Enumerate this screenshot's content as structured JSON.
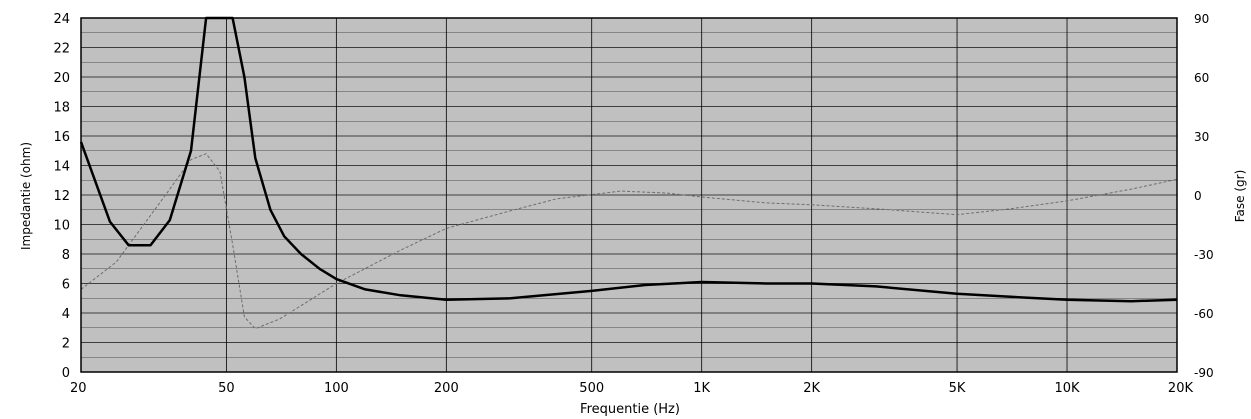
{
  "chart_data": {
    "type": "line",
    "xlabel": "Frequentie (Hz)",
    "ylabel": "Impedantie (ohm)",
    "y2label": "Fase (gr)",
    "x_scale": "log",
    "xlim": [
      20,
      20000
    ],
    "ylim": [
      0,
      24
    ],
    "y2lim": [
      -90,
      90
    ],
    "x_ticks": [
      {
        "value": 20,
        "label": "20"
      },
      {
        "value": 50,
        "label": "50"
      },
      {
        "value": 100,
        "label": "100"
      },
      {
        "value": 200,
        "label": "200"
      },
      {
        "value": 500,
        "label": "500"
      },
      {
        "value": 1000,
        "label": "1K"
      },
      {
        "value": 2000,
        "label": "2K"
      },
      {
        "value": 5000,
        "label": "5K"
      },
      {
        "value": 10000,
        "label": "10K"
      },
      {
        "value": 20000,
        "label": "20K"
      }
    ],
    "y_ticks": [
      "0",
      "2",
      "4",
      "6",
      "8",
      "10",
      "12",
      "14",
      "16",
      "18",
      "20",
      "22",
      "24"
    ],
    "y2_ticks": [
      "-90",
      "-60",
      "-30",
      "0",
      "30",
      "60",
      "90"
    ],
    "grid": true,
    "colors": {
      "plot_background": "#c0c0c0",
      "grid": "#000000",
      "impedance": "#000000",
      "phase": "#6e6e6e"
    },
    "series": [
      {
        "axis": "left",
        "style": "solid",
        "points": [
          [
            20,
            15.6
          ],
          [
            24,
            10.2
          ],
          [
            27,
            8.6
          ],
          [
            31,
            8.6
          ],
          [
            35,
            10.3
          ],
          [
            40,
            15.0
          ],
          [
            44,
            24.0
          ],
          [
            52,
            24.0
          ],
          [
            56,
            20.0
          ],
          [
            60,
            14.5
          ],
          [
            66,
            11.0
          ],
          [
            72,
            9.2
          ],
          [
            80,
            8.0
          ],
          [
            90,
            7.0
          ],
          [
            100,
            6.3
          ],
          [
            120,
            5.6
          ],
          [
            150,
            5.2
          ],
          [
            200,
            4.9
          ],
          [
            300,
            5.0
          ],
          [
            500,
            5.5
          ],
          [
            700,
            5.9
          ],
          [
            1000,
            6.1
          ],
          [
            1500,
            6.0
          ],
          [
            2000,
            6.0
          ],
          [
            3000,
            5.8
          ],
          [
            5000,
            5.3
          ],
          [
            7000,
            5.1
          ],
          [
            10000,
            4.9
          ],
          [
            15000,
            4.8
          ],
          [
            20000,
            4.9
          ]
        ]
      },
      {
        "axis": "right",
        "style": "dashed",
        "points": [
          [
            20,
            -48
          ],
          [
            25,
            -34
          ],
          [
            30,
            -14
          ],
          [
            35,
            3
          ],
          [
            40,
            18
          ],
          [
            44,
            21
          ],
          [
            48,
            12
          ],
          [
            52,
            -25
          ],
          [
            56,
            -62
          ],
          [
            60,
            -68
          ],
          [
            70,
            -63
          ],
          [
            100,
            -45
          ],
          [
            150,
            -28
          ],
          [
            200,
            -17
          ],
          [
            300,
            -8
          ],
          [
            400,
            -2
          ],
          [
            600,
            2
          ],
          [
            800,
            1
          ],
          [
            1000,
            -1
          ],
          [
            1500,
            -4
          ],
          [
            2000,
            -5
          ],
          [
            3000,
            -7
          ],
          [
            5000,
            -10
          ],
          [
            7000,
            -7
          ],
          [
            10000,
            -3
          ],
          [
            15000,
            3
          ],
          [
            20000,
            8
          ]
        ]
      }
    ]
  }
}
